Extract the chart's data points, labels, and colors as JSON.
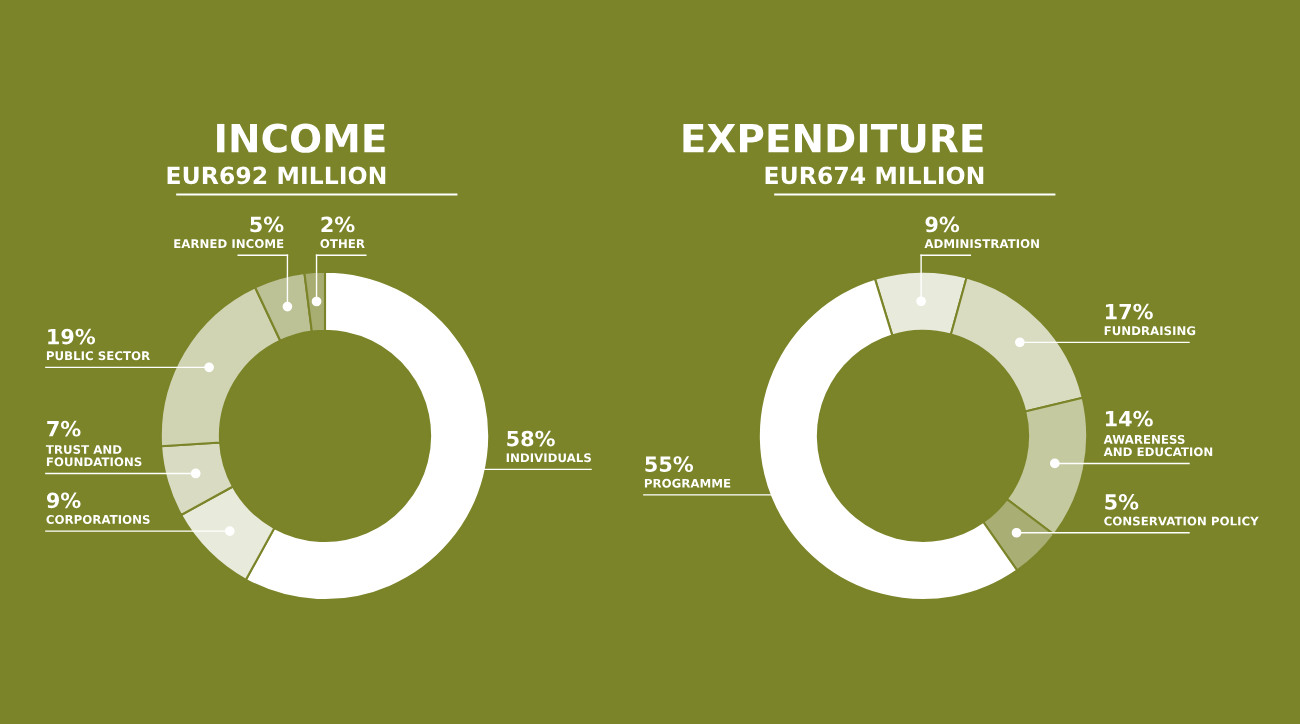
{
  "chart_data": [
    {
      "type": "donut",
      "title": "INCOME",
      "subtitle": "EUR692 MILLION",
      "categories": [
        "INDIVIDUALS",
        "CORPORATIONS",
        "TRUST AND\nFOUNDATIONS",
        "PUBLIC SECTOR",
        "EARNED INCOME",
        "OTHER"
      ],
      "values": [
        58,
        9,
        7,
        19,
        5,
        2
      ],
      "value_labels": [
        "58%",
        "9%",
        "7%",
        "19%",
        "5%",
        "2%"
      ],
      "colors": [
        "#ffffff",
        "#e8eadb",
        "#d9dcc2",
        "#d0d4b3",
        "#bcc196",
        "#a8ad72"
      ]
    },
    {
      "type": "donut",
      "title": "EXPENDITURE",
      "subtitle": "EUR674 MILLION",
      "categories": [
        "ADMINISTRATION",
        "FUNDRAISING",
        "AWARENESS\nAND EDUCATION",
        "CONSERVATION POLICY",
        "PROGRAMME"
      ],
      "values": [
        9,
        17,
        14,
        5,
        55
      ],
      "value_labels": [
        "9%",
        "17%",
        "14%",
        "5%",
        "55%"
      ],
      "colors": [
        "#e8eadc",
        "#d9dcc1",
        "#c5c99f",
        "#a9ae74",
        "#ffffff"
      ]
    }
  ]
}
